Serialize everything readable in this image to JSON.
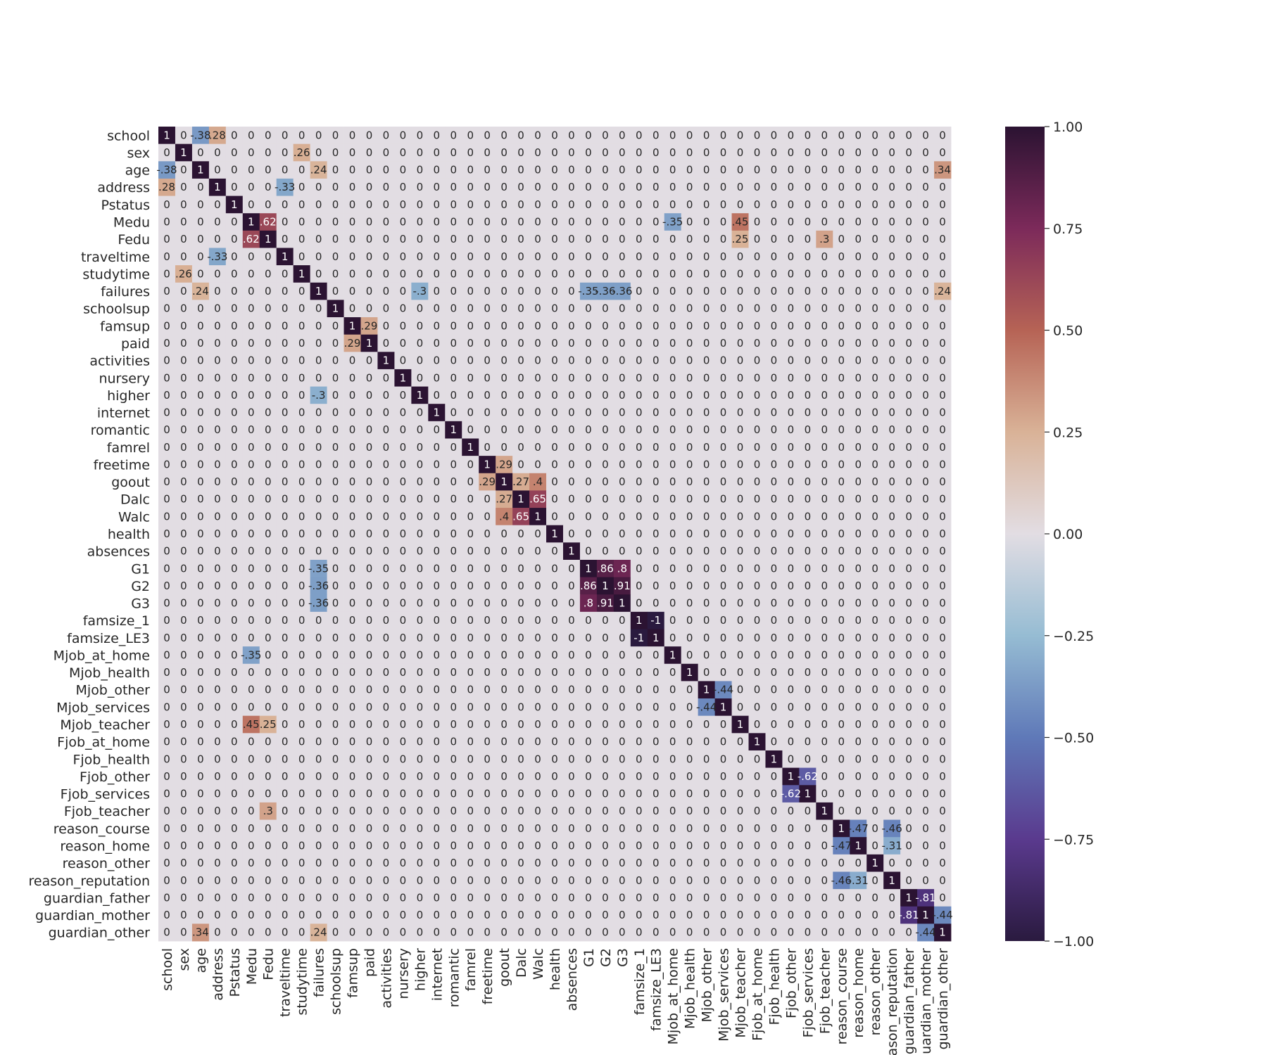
{
  "chart_data": {
    "type": "heatmap",
    "title": "",
    "xlabel": "",
    "ylabel": "",
    "colormap": "twilight_shifted (dark purple at -1, white at 0, brown at +0.5, near-black at +1)",
    "color_scale": {
      "min": -1.0,
      "max": 1.0,
      "stops": [
        {
          "v": -1.0,
          "color": "#2a1a3f"
        },
        {
          "v": -0.75,
          "color": "#5a3a8e"
        },
        {
          "v": -0.5,
          "color": "#5f79b8"
        },
        {
          "v": -0.25,
          "color": "#96bcd3"
        },
        {
          "v": 0.0,
          "color": "#e2dde3"
        },
        {
          "v": 0.25,
          "color": "#d9b297"
        },
        {
          "v": 0.5,
          "color": "#b66355"
        },
        {
          "v": 0.75,
          "color": "#7c2a5a"
        },
        {
          "v": 1.0,
          "color": "#2b1332"
        }
      ]
    },
    "colorbar_ticks": [
      "1.00",
      "0.75",
      "0.50",
      "0.25",
      "0.00",
      "−0.25",
      "−0.50",
      "−0.75",
      "−1.00"
    ],
    "colorbar_tick_values": [
      1.0,
      0.75,
      0.5,
      0.25,
      0.0,
      -0.25,
      -0.5,
      -0.75,
      -1.0
    ],
    "variables": [
      "school",
      "sex",
      "age",
      "address",
      "Pstatus",
      "Medu",
      "Fedu",
      "traveltime",
      "studytime",
      "failures",
      "schoolsup",
      "famsup",
      "paid",
      "activities",
      "nursery",
      "higher",
      "internet",
      "romantic",
      "famrel",
      "freetime",
      "goout",
      "Dalc",
      "Walc",
      "health",
      "absences",
      "G1",
      "G2",
      "G3",
      "famsize_1",
      "famsize_LE3",
      "Mjob_at_home",
      "Mjob_health",
      "Mjob_other",
      "Mjob_services",
      "Mjob_teacher",
      "Fjob_at_home",
      "Fjob_health",
      "Fjob_other",
      "Fjob_services",
      "Fjob_teacher",
      "reason_course",
      "reason_home",
      "reason_other",
      "reason_reputation",
      "guardian_father",
      "guardian_mother",
      "guardian_other"
    ],
    "correlations": [
      {
        "row": "Medu",
        "col": "Fedu",
        "value": 0.62
      },
      {
        "row": "failures",
        "col": "age",
        "value": 0.24
      },
      {
        "row": "failures",
        "col": "higher",
        "value": -0.3
      },
      {
        "row": "failures",
        "col": "G1",
        "value": -0.35
      },
      {
        "row": "failures",
        "col": "G2",
        "value": -0.36
      },
      {
        "row": "failures",
        "col": "G3",
        "value": -0.36
      },
      {
        "row": "freetime",
        "col": "goout",
        "value": 0.29
      },
      {
        "row": "goout",
        "col": "Dalc",
        "value": 0.27
      },
      {
        "row": "goout",
        "col": "Walc",
        "value": 0.4
      },
      {
        "row": "Dalc",
        "col": "Walc",
        "value": 0.65
      },
      {
        "row": "G1",
        "col": "G2",
        "value": 0.86
      },
      {
        "row": "G1",
        "col": "G3",
        "value": 0.8
      },
      {
        "row": "G2",
        "col": "G3",
        "value": 0.91
      },
      {
        "row": "famsize_1",
        "col": "famsize_LE3",
        "value": -1.0
      },
      {
        "row": "Mjob_at_home",
        "col": "Medu",
        "value": -0.35
      },
      {
        "row": "Mjob_other",
        "col": "Mjob_services",
        "value": -0.44
      },
      {
        "row": "Mjob_teacher",
        "col": "Medu",
        "value": 0.45
      },
      {
        "row": "Mjob_teacher",
        "col": "Fedu",
        "value": 0.25
      },
      {
        "row": "Fjob_other",
        "col": "Fjob_services",
        "value": -0.62
      },
      {
        "row": "Fjob_teacher",
        "col": "Fedu",
        "value": 0.3
      },
      {
        "row": "reason_course",
        "col": "reason_home",
        "value": -0.47
      },
      {
        "row": "reason_course",
        "col": "reason_reputation",
        "value": -0.46
      },
      {
        "row": "reason_home",
        "col": "reason_reputation",
        "value": -0.31
      },
      {
        "row": "guardian_father",
        "col": "guardian_mother",
        "value": -0.81
      },
      {
        "row": "guardian_mother",
        "col": "guardian_other",
        "value": -0.44
      },
      {
        "row": "guardian_other",
        "col": "age",
        "value": 0.34
      },
      {
        "row": "guardian_other",
        "col": "failures",
        "value": 0.24
      },
      {
        "row": "sex",
        "col": "studytime",
        "value": 0.26
      },
      {
        "row": "age",
        "col": "school",
        "value": -0.38
      },
      {
        "row": "address",
        "col": "school",
        "value": 0.28
      },
      {
        "row": "address",
        "col": "traveltime",
        "value": -0.33
      },
      {
        "row": "paid",
        "col": "famsup",
        "value": 0.29
      }
    ],
    "default_offdiagonal_value": 0.0,
    "grid": false,
    "legend": "colorbar at right"
  }
}
